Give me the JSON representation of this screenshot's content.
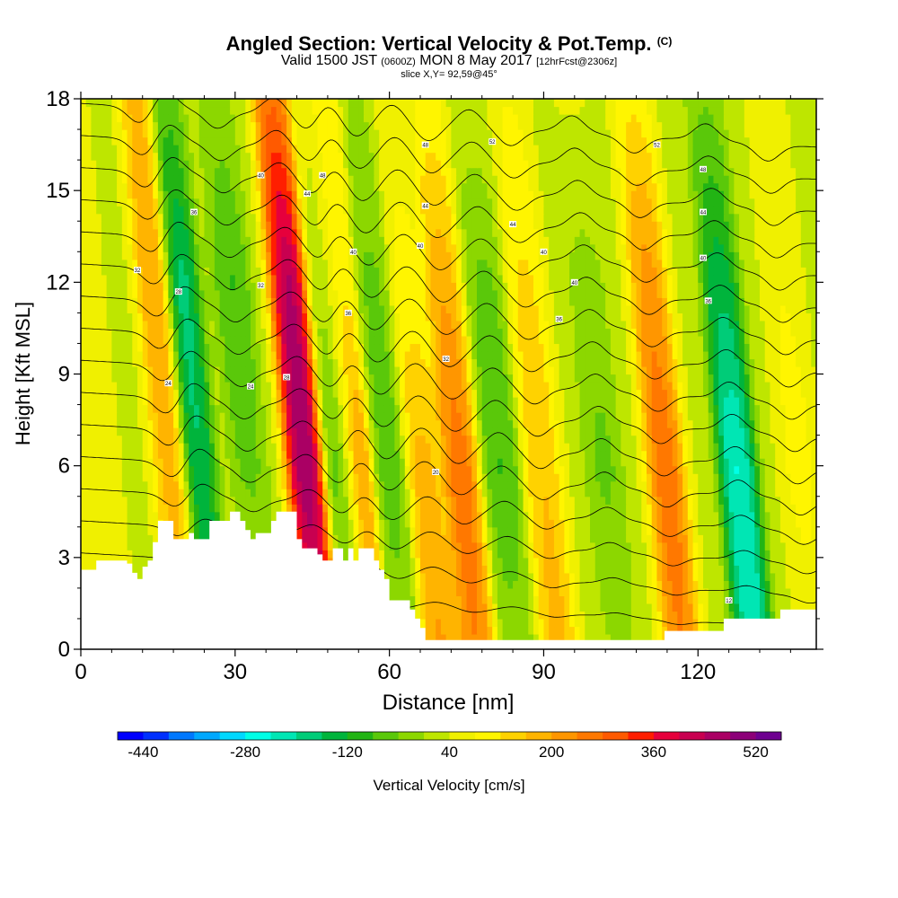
{
  "header": {
    "title": "Angled Section: Vertical Velocity & Pot.Temp.",
    "title_mark": "(C)",
    "subtitle_main": "Valid 1500 JST",
    "subtitle_utc": "(0600Z)",
    "subtitle_date": "MON 8 May 2017",
    "subtitle_fcst": "[12hrFcst@2306z]",
    "slice": "slice X,Y= 92,59@45°"
  },
  "chart_data": {
    "type": "heatmap",
    "xlabel": "Distance [nm]",
    "ylabel": "Height [Kft MSL]",
    "xlim": [
      0,
      143
    ],
    "ylim": [
      0,
      18
    ],
    "x_ticks": [
      "0",
      "30",
      "60",
      "90",
      "120"
    ],
    "y_ticks": [
      "0",
      "3",
      "6",
      "9",
      "12",
      "15",
      "18"
    ],
    "colorbar": {
      "label": "Vertical Velocity [cm/s]",
      "tick_labels": [
        "-440",
        "-280",
        "-120",
        "40",
        "200",
        "360",
        "520"
      ],
      "min": -480,
      "max": 560,
      "step": 40,
      "colors": [
        "#0000ff",
        "#0030ff",
        "#0078ff",
        "#00a8ff",
        "#00d8ff",
        "#00ffe6",
        "#00e6b4",
        "#00cc78",
        "#00b43c",
        "#22b414",
        "#5ac80a",
        "#8cd700",
        "#bee600",
        "#f0f000",
        "#fff500",
        "#ffd200",
        "#ffb400",
        "#ff9600",
        "#ff7800",
        "#ff5a00",
        "#ff1e00",
        "#e6003c",
        "#c80050",
        "#aa0064",
        "#8c0078",
        "#6e0090"
      ]
    },
    "velocity_bands": [
      {
        "x": 16,
        "w": [
          150,
          190,
          220,
          180
        ]
      },
      {
        "x": 21,
        "w": [
          -160,
          -240,
          -260,
          -120
        ]
      },
      {
        "x": 31,
        "w": [
          -20,
          -100,
          -140,
          -60
        ]
      },
      {
        "x": 42,
        "w": [
          420,
          560,
          520,
          300
        ]
      },
      {
        "x": 49,
        "w": [
          -80,
          -140,
          -40,
          20
        ]
      },
      {
        "x": 52,
        "w": [
          180,
          260,
          120,
          120
        ]
      },
      {
        "x": 58,
        "w": [
          -60,
          -120,
          -100,
          -40
        ]
      },
      {
        "x": 65,
        "w": [
          220,
          180,
          80,
          40
        ]
      },
      {
        "x": 72,
        "w": [
          260,
          300,
          200,
          80
        ]
      },
      {
        "x": 80,
        "w": [
          -60,
          -140,
          -100,
          0
        ]
      },
      {
        "x": 88,
        "w": [
          180,
          160,
          120,
          60
        ]
      },
      {
        "x": 100,
        "w": [
          -40,
          -100,
          -60,
          20
        ]
      },
      {
        "x": 112,
        "w": [
          260,
          300,
          240,
          100
        ]
      },
      {
        "x": 126,
        "w": [
          -320,
          -340,
          -220,
          -80
        ]
      },
      {
        "x": 138,
        "w": [
          40,
          80,
          60,
          40
        ]
      }
    ],
    "terrain_kft": [
      [
        0,
        2.6
      ],
      [
        3,
        2.9
      ],
      [
        8,
        2.9
      ],
      [
        9,
        2.8
      ],
      [
        10,
        2.5
      ],
      [
        11,
        2.3
      ],
      [
        12,
        2.7
      ],
      [
        13,
        2.9
      ],
      [
        14,
        3.5
      ],
      [
        15,
        4.2
      ],
      [
        17,
        4.2
      ],
      [
        18,
        3.6
      ],
      [
        20,
        3.6
      ],
      [
        21,
        3.8
      ],
      [
        22,
        3.6
      ],
      [
        24,
        3.6
      ],
      [
        25,
        4.2
      ],
      [
        28,
        4.2
      ],
      [
        29,
        4.5
      ],
      [
        30,
        4.5
      ],
      [
        31,
        4.2
      ],
      [
        32,
        3.9
      ],
      [
        33,
        3.6
      ],
      [
        34,
        3.8
      ],
      [
        36,
        3.8
      ],
      [
        37,
        4.2
      ],
      [
        38,
        4.5
      ],
      [
        40,
        4.5
      ],
      [
        42,
        3.6
      ],
      [
        43,
        3.3
      ],
      [
        45,
        3.3
      ],
      [
        46,
        3.1
      ],
      [
        47,
        2.9
      ],
      [
        48,
        2.9
      ],
      [
        49,
        3.3
      ],
      [
        50,
        3.3
      ],
      [
        51,
        2.9
      ],
      [
        52,
        3.3
      ],
      [
        53,
        2.9
      ],
      [
        54,
        3.3
      ],
      [
        56,
        3.3
      ],
      [
        57,
        2.9
      ],
      [
        58,
        2.6
      ],
      [
        59,
        2.3
      ],
      [
        60,
        1.6
      ],
      [
        63,
        1.6
      ],
      [
        64,
        1.3
      ],
      [
        65,
        1.0
      ],
      [
        66,
        0.7
      ],
      [
        67,
        0.3
      ],
      [
        72,
        0.3
      ],
      [
        90,
        0.3
      ],
      [
        113,
        0.3
      ],
      [
        113.5,
        0.6
      ],
      [
        120,
        0.6
      ],
      [
        125,
        1.0
      ],
      [
        130,
        1.0
      ],
      [
        135,
        1.0
      ],
      [
        136,
        1.3
      ],
      [
        143,
        1.3
      ]
    ],
    "isentrope_levels": 16,
    "contour_labels": [
      {
        "x": 11,
        "y": 12.4,
        "t": "32"
      },
      {
        "x": 17,
        "y": 8.7,
        "t": "24"
      },
      {
        "x": 19,
        "y": 11.7,
        "t": "28"
      },
      {
        "x": 22,
        "y": 14.3,
        "t": "36"
      },
      {
        "x": 33,
        "y": 8.6,
        "t": "24"
      },
      {
        "x": 35,
        "y": 11.9,
        "t": "32"
      },
      {
        "x": 35,
        "y": 15.5,
        "t": "40"
      },
      {
        "x": 40,
        "y": 8.9,
        "t": "28"
      },
      {
        "x": 44,
        "y": 14.9,
        "t": "44"
      },
      {
        "x": 47,
        "y": 15.5,
        "t": "48"
      },
      {
        "x": 52,
        "y": 11.0,
        "t": "36"
      },
      {
        "x": 53,
        "y": 13.0,
        "t": "40"
      },
      {
        "x": 66,
        "y": 13.2,
        "t": "40"
      },
      {
        "x": 67,
        "y": 14.5,
        "t": "44"
      },
      {
        "x": 67,
        "y": 16.5,
        "t": "48"
      },
      {
        "x": 69,
        "y": 5.8,
        "t": "20"
      },
      {
        "x": 71,
        "y": 9.5,
        "t": "32"
      },
      {
        "x": 80,
        "y": 16.6,
        "t": "52"
      },
      {
        "x": 84,
        "y": 13.9,
        "t": "44"
      },
      {
        "x": 90,
        "y": 13.0,
        "t": "40"
      },
      {
        "x": 93,
        "y": 10.8,
        "t": "36"
      },
      {
        "x": 96,
        "y": 12.0,
        "t": "40"
      },
      {
        "x": 112,
        "y": 16.5,
        "t": "52"
      },
      {
        "x": 121,
        "y": 12.8,
        "t": "40"
      },
      {
        "x": 121,
        "y": 14.3,
        "t": "44"
      },
      {
        "x": 121,
        "y": 15.7,
        "t": "48"
      },
      {
        "x": 122,
        "y": 11.4,
        "t": "36"
      },
      {
        "x": 126,
        "y": 1.6,
        "t": "12"
      }
    ]
  }
}
